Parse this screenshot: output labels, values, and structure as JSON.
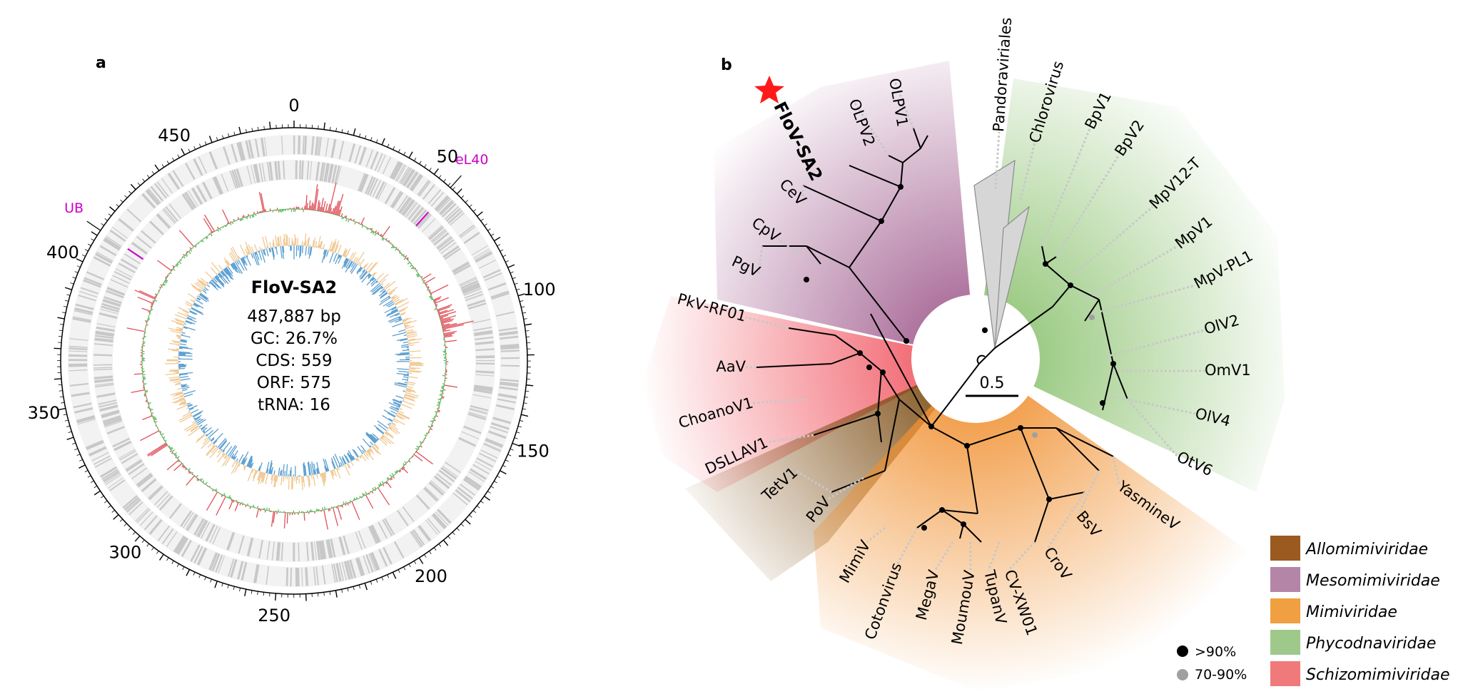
{
  "panel_a": {
    "label": "a",
    "genome_name": "FloV-SA2",
    "stats": [
      "487,887 bp",
      "GC: 26.7%",
      "CDS: 559",
      "ORF: 575",
      "tRNA: 16"
    ],
    "genome_length_kb": 487.887,
    "tick_labels": [
      {
        "kb": 0,
        "text": "0"
      },
      {
        "kb": 50,
        "text": "50"
      },
      {
        "kb": 100,
        "text": "100"
      },
      {
        "kb": 150,
        "text": "150"
      },
      {
        "kb": 200,
        "text": "200"
      },
      {
        "kb": 250,
        "text": "250"
      },
      {
        "kb": 300,
        "text": "300"
      },
      {
        "kb": 350,
        "text": "350"
      },
      {
        "kb": 400,
        "text": "400"
      },
      {
        "kb": 450,
        "text": "450"
      }
    ],
    "highlighted_genes": [
      {
        "kb": 57,
        "text": "eL40"
      },
      {
        "kb": 412,
        "text": "UB"
      }
    ],
    "colors": {
      "cds": "#c8c8c8",
      "gc_high": "#e0505a",
      "gc_low": "#5cb85c",
      "skew_pos": "#f1c892",
      "skew_neg": "#5b9fd0",
      "marker": "#cc00cc"
    }
  },
  "panel_b": {
    "label": "b",
    "scale_label": "0.5",
    "focal_taxon": "FloV-SA2",
    "tips": [
      {
        "name": "FloV-SA2",
        "bold": true
      },
      {
        "name": "OLPV2"
      },
      {
        "name": "OLPV1"
      },
      {
        "name": "Pandoraviriales"
      },
      {
        "name": "Chlorovirus"
      },
      {
        "name": "BpV1"
      },
      {
        "name": "BpV2"
      },
      {
        "name": "MpV12-T"
      },
      {
        "name": "MpV1"
      },
      {
        "name": "MpV-PL1"
      },
      {
        "name": "OlV2"
      },
      {
        "name": "OmV1"
      },
      {
        "name": "OlV4"
      },
      {
        "name": "OtV6"
      },
      {
        "name": "YasmineV"
      },
      {
        "name": "BsV"
      },
      {
        "name": "CroV"
      },
      {
        "name": "CV-XW01"
      },
      {
        "name": "TupanV"
      },
      {
        "name": "MoumouV"
      },
      {
        "name": "MegaV"
      },
      {
        "name": "Cotonvirus"
      },
      {
        "name": "MimiV"
      },
      {
        "name": "PoV"
      },
      {
        "name": "TetV1"
      },
      {
        "name": "DSLLAV1"
      },
      {
        "name": "ChoanoV1"
      },
      {
        "name": "AaV"
      },
      {
        "name": "PkV-RF01"
      },
      {
        "name": "PgV"
      },
      {
        "name": "CpV"
      },
      {
        "name": "CeV"
      }
    ],
    "legend": [
      {
        "family": "Allomimiviridae",
        "color": "#9a5a20"
      },
      {
        "family": "Mesomimiviridae",
        "color": "#b585a8"
      },
      {
        "family": "Mimiviridae",
        "color": "#f0a040"
      },
      {
        "family": "Phycodnaviridae",
        "color": "#9ec98a"
      },
      {
        "family": "Schizomimiviridae",
        "color": "#f07a7a"
      }
    ],
    "support_legend": [
      {
        "label": ">90%",
        "color": "#000000"
      },
      {
        "label": "70-90%",
        "color": "#a0a0a0"
      }
    ],
    "star_color": "#ff1a1a"
  }
}
